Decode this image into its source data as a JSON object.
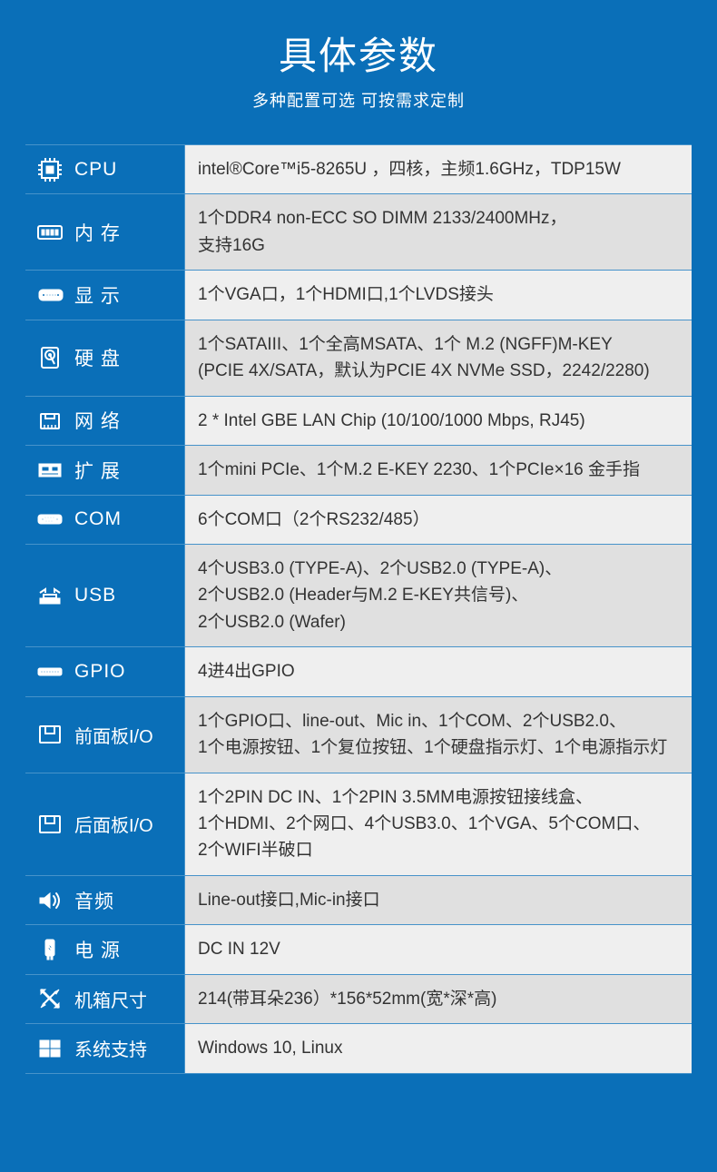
{
  "colors": {
    "page_bg": "#0a6fb8",
    "label_bg": "#0a6fb8",
    "value_bg_dark": "#e0e0e0",
    "value_bg_light": "#efefef",
    "label_text": "#ffffff",
    "value_text": "#333333",
    "border": "rgba(255,255,255,0.25)"
  },
  "typography": {
    "title_fontsize": 42,
    "subtitle_fontsize": 18,
    "label_fontsize": 21,
    "value_fontsize": 19
  },
  "header": {
    "title": "具体参数",
    "subtitle": "多种配置可选 可按需求定制"
  },
  "rows": [
    {
      "id": "cpu",
      "icon": "cpu-icon",
      "label": "CPU",
      "label_spaced": false,
      "value": "intel®Core™i5-8265U ，四核，主频1.6GHz，TDP15W",
      "light": true
    },
    {
      "id": "memory",
      "icon": "memory-icon",
      "label": "内 存",
      "label_spaced": false,
      "value": "1个DDR4 non-ECC SO DIMM 2133/2400MHz，\n支持16G",
      "light": false
    },
    {
      "id": "display",
      "icon": "display-icon",
      "label": "显 示",
      "label_spaced": false,
      "value": "1个VGA口，1个HDMI口,1个LVDS接头",
      "light": true
    },
    {
      "id": "hdd",
      "icon": "hdd-icon",
      "label": "硬 盘",
      "label_spaced": false,
      "value": "1个SATAIII、1个全高MSATA、1个 M.2 (NGFF)M-KEY\n(PCIE 4X/SATA，默认为PCIE 4X NVMe SSD，2242/2280)",
      "light": false
    },
    {
      "id": "network",
      "icon": "network-icon",
      "label": "网 络",
      "label_spaced": false,
      "value": "2 * Intel GBE LAN Chip (10/100/1000 Mbps, RJ45)",
      "light": true
    },
    {
      "id": "expand",
      "icon": "expand-icon",
      "label": "扩 展",
      "label_spaced": false,
      "value": "1个mini PCIe、1个M.2 E-KEY 2230、1个PCIe×16 金手指",
      "light": false
    },
    {
      "id": "com",
      "icon": "com-icon",
      "label": "COM",
      "label_spaced": false,
      "value": "6个COM口（2个RS232/485）",
      "light": true
    },
    {
      "id": "usb",
      "icon": "usb-icon",
      "label": "USB",
      "label_spaced": false,
      "value": "4个USB3.0 (TYPE-A)、2个USB2.0 (TYPE-A)、\n2个USB2.0 (Header与M.2 E-KEY共信号)、\n2个USB2.0 (Wafer)",
      "light": false
    },
    {
      "id": "gpio",
      "icon": "gpio-icon",
      "label": "GPIO",
      "label_spaced": false,
      "value": "4进4出GPIO",
      "light": true
    },
    {
      "id": "frontio",
      "icon": "panel-icon",
      "label": "前面板I/O",
      "label_spaced": false,
      "value": "1个GPIO口、line-out、Mic in、1个COM、2个USB2.0、\n1个电源按钮、1个复位按钮、1个硬盘指示灯、1个电源指示灯",
      "light": false,
      "narrow": true
    },
    {
      "id": "backio",
      "icon": "panel-icon",
      "label": "后面板I/O",
      "label_spaced": false,
      "value": "1个2PIN DC IN、1个2PIN 3.5MM电源按钮接线盒、\n1个HDMI、2个网口、4个USB3.0、1个VGA、5个COM口、\n2个WIFI半破口",
      "light": true,
      "narrow": true
    },
    {
      "id": "audio",
      "icon": "audio-icon",
      "label": "音频",
      "label_spaced": false,
      "value": "Line-out接口,Mic-in接口",
      "light": false
    },
    {
      "id": "power",
      "icon": "power-icon",
      "label": "电 源",
      "label_spaced": false,
      "value": "DC IN 12V",
      "light": true
    },
    {
      "id": "size",
      "icon": "size-icon",
      "label": "机箱尺寸",
      "label_spaced": false,
      "value": "214(带耳朵236）*156*52mm(宽*深*高)",
      "light": false,
      "narrow": true
    },
    {
      "id": "os",
      "icon": "os-icon",
      "label": "系统支持",
      "label_spaced": false,
      "value": "Windows 10, Linux",
      "light": true,
      "narrow": true
    }
  ]
}
